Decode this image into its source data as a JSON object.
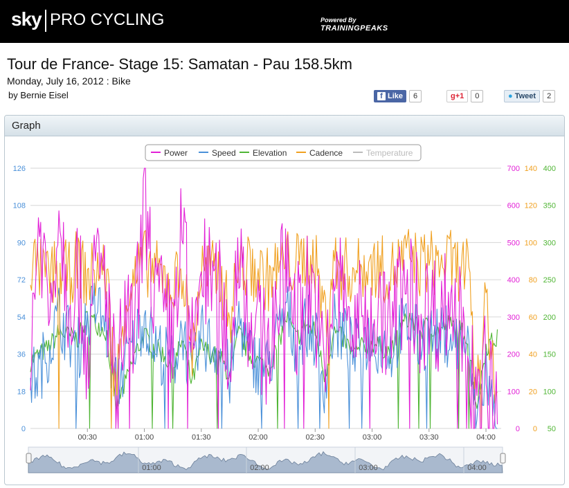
{
  "header": {
    "brand_sky": "sky",
    "brand_rest": "PRO CYCLING",
    "powered_by": "Powered By",
    "partner": "TRAININGPEAKS"
  },
  "page": {
    "title": "Tour de France- Stage 15: Samatan - Pau 158.5km",
    "subtitle": "Monday, July 16, 2012 : Bike",
    "byline": "by Bernie Eisel"
  },
  "social": {
    "like_label": "Like",
    "like_count": "6",
    "gplus_label": "+1",
    "gplus_count": "0",
    "tweet_label": "Tweet",
    "tweet_count": "2"
  },
  "panel": {
    "title": "Graph"
  },
  "colors": {
    "power": "#e21fd6",
    "speed": "#4a90d9",
    "elevation": "#4fb534",
    "cadence": "#f0a020",
    "temperature": "#bbbbbb",
    "nav_fill": "#a9b9ce"
  },
  "chart_data": {
    "type": "line",
    "x_unit": "elapsed h:mm",
    "xlim": [
      "00:00",
      "04:08"
    ],
    "x_ticks": [
      "00:30",
      "01:00",
      "01:30",
      "02:00",
      "02:30",
      "03:00",
      "03:30",
      "04:00"
    ],
    "legend": [
      "Power",
      "Speed",
      "Elevation",
      "Cadence",
      "Temperature"
    ],
    "legend_disabled": [
      "Temperature"
    ],
    "legend_placement": "top-center",
    "axes": {
      "speed": {
        "side": "left",
        "range": [
          0,
          126
        ],
        "ticks": [
          "0",
          "18",
          "36",
          "54",
          "72",
          "90",
          "108",
          "126"
        ]
      },
      "power": {
        "side": "right",
        "range": [
          0,
          700
        ],
        "ticks": [
          "0",
          "100",
          "200",
          "300",
          "400",
          "500",
          "600",
          "700"
        ]
      },
      "cadence": {
        "side": "right",
        "range": [
          0,
          140
        ],
        "ticks": [
          "0",
          "20",
          "40",
          "60",
          "80",
          "100",
          "120",
          "140"
        ]
      },
      "elevation": {
        "side": "right",
        "range": [
          50,
          400
        ],
        "ticks": [
          "50",
          "100",
          "150",
          "200",
          "250",
          "300",
          "350",
          "400"
        ]
      }
    },
    "grid": true,
    "series": [
      {
        "name": "Power",
        "axis": "power",
        "color": "#e21fd6",
        "x": [
          0,
          5,
          10,
          15,
          20,
          25,
          30,
          35,
          40,
          45,
          50,
          55,
          60,
          65,
          70,
          75,
          80,
          85,
          90,
          95,
          100,
          105,
          110,
          115,
          120,
          125,
          130,
          135,
          140,
          145,
          150,
          155,
          160,
          165,
          170,
          175,
          180,
          185,
          190,
          195,
          200,
          205,
          210,
          215,
          220,
          225,
          230,
          235,
          240,
          245
        ],
        "y": [
          250,
          560,
          300,
          600,
          350,
          420,
          200,
          450,
          380,
          100,
          300,
          250,
          610,
          380,
          300,
          240,
          570,
          200,
          430,
          390,
          350,
          180,
          520,
          300,
          250,
          210,
          330,
          470,
          290,
          390,
          350,
          120,
          400,
          360,
          260,
          310,
          330,
          290,
          280,
          360,
          380,
          300,
          330,
          310,
          340,
          300,
          290,
          0,
          200,
          0
        ]
      },
      {
        "name": "Speed",
        "axis": "speed",
        "color": "#4a90d9",
        "x": [
          0,
          5,
          10,
          15,
          20,
          25,
          30,
          35,
          40,
          45,
          50,
          55,
          60,
          65,
          70,
          75,
          80,
          85,
          90,
          95,
          100,
          105,
          110,
          115,
          120,
          125,
          130,
          135,
          140,
          145,
          150,
          155,
          160,
          165,
          170,
          175,
          180,
          185,
          190,
          195,
          200,
          205,
          210,
          215,
          220,
          225,
          230,
          235,
          240,
          245
        ],
        "y": [
          24,
          28,
          40,
          55,
          45,
          38,
          52,
          60,
          48,
          20,
          32,
          42,
          56,
          40,
          36,
          30,
          50,
          22,
          45,
          40,
          38,
          25,
          55,
          35,
          32,
          30,
          44,
          58,
          40,
          50,
          45,
          22,
          50,
          45,
          36,
          42,
          44,
          40,
          38,
          48,
          50,
          42,
          45,
          42,
          46,
          42,
          40,
          4,
          28,
          2
        ]
      },
      {
        "name": "Elevation",
        "axis": "elevation",
        "color": "#4fb534",
        "x": [
          0,
          5,
          10,
          15,
          20,
          25,
          30,
          35,
          40,
          45,
          50,
          55,
          60,
          65,
          70,
          75,
          80,
          85,
          90,
          95,
          100,
          105,
          110,
          115,
          120,
          125,
          130,
          135,
          140,
          145,
          150,
          155,
          160,
          165,
          170,
          175,
          180,
          185,
          190,
          195,
          200,
          205,
          210,
          215,
          220,
          225,
          230,
          235,
          240,
          245
        ],
        "y": [
          140,
          150,
          160,
          180,
          175,
          170,
          200,
          190,
          180,
          80,
          110,
          150,
          175,
          160,
          150,
          130,
          170,
          110,
          160,
          150,
          145,
          120,
          180,
          150,
          140,
          130,
          160,
          200,
          170,
          190,
          180,
          120,
          180,
          170,
          150,
          160,
          165,
          160,
          150,
          185,
          200,
          180,
          190,
          180,
          190,
          185,
          175,
          80,
          160,
          170
        ]
      },
      {
        "name": "Cadence",
        "axis": "cadence",
        "color": "#f0a020",
        "x": [
          0,
          5,
          10,
          15,
          20,
          25,
          30,
          35,
          40,
          45,
          50,
          55,
          60,
          65,
          70,
          75,
          80,
          85,
          90,
          95,
          100,
          105,
          110,
          115,
          120,
          125,
          130,
          135,
          140,
          145,
          150,
          155,
          160,
          165,
          170,
          175,
          180,
          185,
          190,
          195,
          200,
          205,
          210,
          215,
          220,
          225,
          230,
          235,
          240,
          245
        ],
        "y": [
          90,
          85,
          80,
          88,
          82,
          90,
          80,
          86,
          84,
          20,
          70,
          80,
          90,
          85,
          80,
          75,
          88,
          40,
          85,
          84,
          82,
          60,
          88,
          86,
          84,
          80,
          86,
          90,
          88,
          92,
          90,
          60,
          88,
          86,
          84,
          86,
          88,
          86,
          84,
          90,
          92,
          88,
          90,
          88,
          90,
          86,
          88,
          20,
          80,
          10
        ]
      }
    ]
  }
}
